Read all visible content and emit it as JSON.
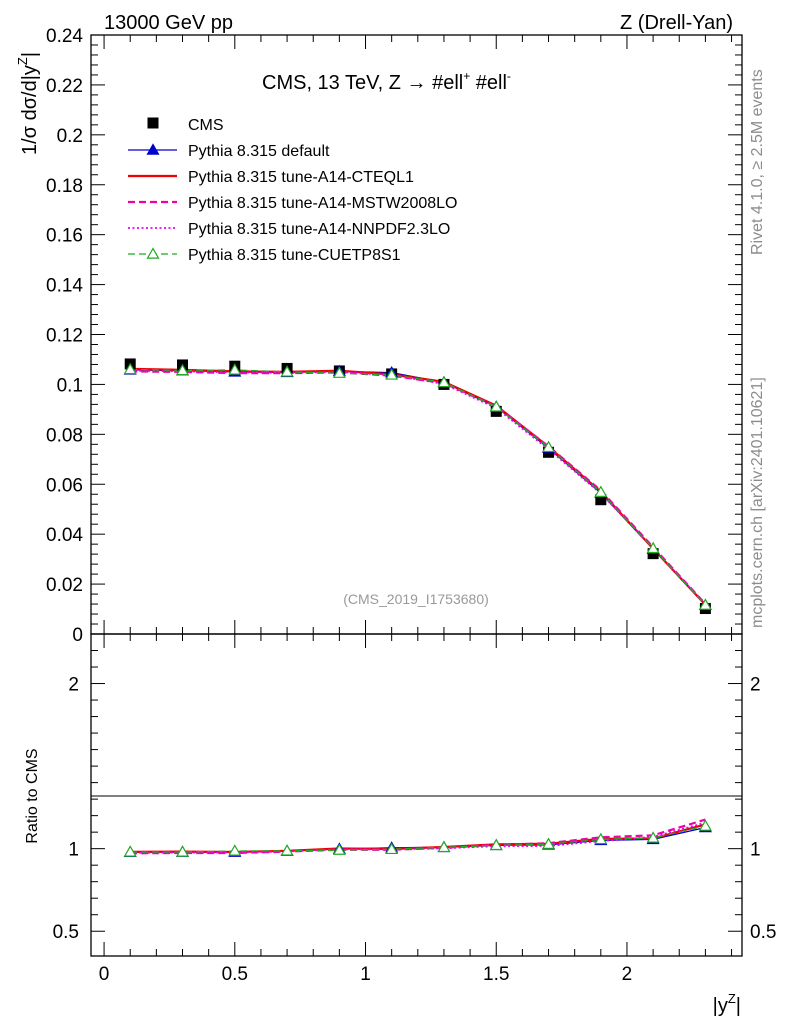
{
  "header": {
    "left": "13000 GeV pp",
    "right": "Z (Drell-Yan)"
  },
  "side_labels": {
    "rivet": "Rivet 4.1.0, ≥ 2.5M events",
    "mcplots": "mcplots.cern.ch [arXiv:2401.10621]"
  },
  "chart_data": [
    {
      "type": "line",
      "panel": "main",
      "title": "CMS, 13 TeV, Z →  #ell⁺ #ell⁻",
      "title_parts": {
        "main": "CMS, 13 TeV, Z →  #ell",
        "sup1": "+",
        "mid": " #ell",
        "sup2": "-"
      },
      "ylabel": "1/σ dσ/d|y^Z|",
      "ylabel_parts": {
        "main": "1/σ dσ/d|y",
        "sup": "Z",
        "end": "|"
      },
      "watermark": "(CMS_2019_I1753680)",
      "xlim": [
        -0.05,
        2.44
      ],
      "ylim": [
        0,
        0.24
      ],
      "yticks": [
        0,
        0.02,
        0.04,
        0.06,
        0.08,
        0.1,
        0.12,
        0.14,
        0.16,
        0.18,
        0.2,
        0.22,
        0.24
      ],
      "ytick_labels": [
        "0",
        "0.02",
        "0.04",
        "0.06",
        "0.08",
        "0.1",
        "0.12",
        "0.14",
        "0.16",
        "0.18",
        "0.2",
        "0.22",
        "0.24"
      ],
      "x": [
        0.1,
        0.3,
        0.5,
        0.7,
        0.9,
        1.1,
        1.3,
        1.5,
        1.7,
        1.9,
        2.1,
        2.3
      ],
      "series": [
        {
          "name": "CMS",
          "color": "#000000",
          "style": "marker-square",
          "values": [
            0.1082,
            0.1078,
            0.1073,
            0.1064,
            0.1054,
            0.1042,
            0.1,
            0.0892,
            0.0728,
            0.0538,
            0.0322,
            0.0102
          ]
        },
        {
          "name": "Pythia 8.315 default",
          "color": "#0000cc",
          "style": "solid-triangle",
          "values": [
            0.1058,
            0.1055,
            0.105,
            0.1048,
            0.1052,
            0.1047,
            0.1008,
            0.091,
            0.0745,
            0.0565,
            0.034,
            0.0115
          ]
        },
        {
          "name": "Pythia 8.315 tune-A14-CTEQL1",
          "color": "#ee0000",
          "style": "solid",
          "values": [
            0.1062,
            0.1058,
            0.1052,
            0.105,
            0.1055,
            0.104,
            0.101,
            0.0915,
            0.075,
            0.057,
            0.0342,
            0.0117
          ]
        },
        {
          "name": "Pythia 8.315 tune-A14-MSTW2008LO",
          "color": "#ee00aa",
          "style": "dashed",
          "values": [
            0.1052,
            0.105,
            0.1045,
            0.1045,
            0.1048,
            0.1035,
            0.1005,
            0.0912,
            0.0752,
            0.0575,
            0.0348,
            0.012
          ]
        },
        {
          "name": "Pythia 8.315 tune-A14-NNPDF2.3LO",
          "color": "#ee00ee",
          "style": "dotted",
          "values": [
            0.1055,
            0.1052,
            0.1048,
            0.1046,
            0.105,
            0.1037,
            0.1002,
            0.0905,
            0.074,
            0.0563,
            0.0345,
            0.0118
          ]
        },
        {
          "name": "Pythia 8.315 tune-CUETP8S1",
          "color": "#22aa22",
          "style": "dashed-open-triangle",
          "values": [
            0.106,
            0.1056,
            0.1058,
            0.105,
            0.1045,
            0.1038,
            0.1008,
            0.091,
            0.0748,
            0.0568,
            0.0343,
            0.0116
          ]
        }
      ]
    },
    {
      "type": "line",
      "panel": "ratio",
      "ylabel": "Ratio to CMS",
      "xlabel": "|y^Z|",
      "xlabel_parts": {
        "main": "|y",
        "sup": "Z",
        "end": "|"
      },
      "xlim": [
        -0.05,
        2.44
      ],
      "ylim": [
        0.35,
        2.3
      ],
      "xticks": [
        0,
        0.5,
        1,
        1.5,
        2
      ],
      "xtick_labels": [
        "0",
        "0.5",
        "1",
        "1.5",
        "2"
      ],
      "yticks": [
        0.5,
        1,
        2
      ],
      "ytick_labels": [
        "0.5",
        "1",
        "2"
      ],
      "x": [
        0.1,
        0.3,
        0.5,
        0.7,
        0.9,
        1.1,
        1.3,
        1.5,
        1.7,
        1.9,
        2.1,
        2.3
      ],
      "series": [
        {
          "name": "Pythia 8.315 default",
          "color": "#0000cc",
          "style": "solid-triangle",
          "values": [
            0.978,
            0.979,
            0.979,
            0.985,
            0.998,
            1.005,
            1.008,
            1.02,
            1.023,
            1.05,
            1.056,
            1.128
          ]
        },
        {
          "name": "Pythia 8.315 tune-A14-CTEQL1",
          "color": "#ee0000",
          "style": "solid",
          "values": [
            0.981,
            0.982,
            0.98,
            0.987,
            1.001,
            0.998,
            1.01,
            1.026,
            1.03,
            1.059,
            1.062,
            1.147
          ]
        },
        {
          "name": "Pythia 8.315 tune-A14-MSTW2008LO",
          "color": "#ee00aa",
          "style": "dashed",
          "values": [
            0.972,
            0.974,
            0.974,
            0.982,
            0.994,
            0.993,
            1.005,
            1.022,
            1.033,
            1.069,
            1.081,
            1.176
          ]
        },
        {
          "name": "Pythia 8.315 tune-A14-NNPDF2.3LO",
          "color": "#ee00ee",
          "style": "dotted",
          "values": [
            0.975,
            0.976,
            0.977,
            0.983,
            0.996,
            0.995,
            1.002,
            1.015,
            1.016,
            1.046,
            1.071,
            1.157
          ]
        },
        {
          "name": "Pythia 8.315 tune-CUETP8S1",
          "color": "#22aa22",
          "style": "dashed-open-triangle",
          "values": [
            0.98,
            0.98,
            0.986,
            0.987,
            0.991,
            0.996,
            1.008,
            1.02,
            1.027,
            1.056,
            1.065,
            1.137
          ]
        }
      ]
    }
  ]
}
